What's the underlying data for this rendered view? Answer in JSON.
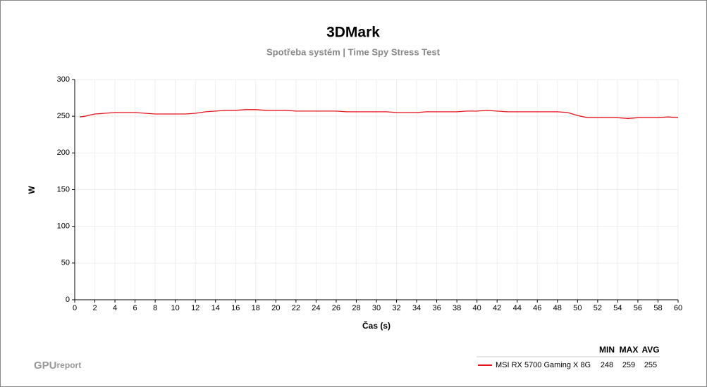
{
  "chart_data": {
    "type": "line",
    "title": "3DMark",
    "subtitle": "Spotřeba systém | Time Spy Stress Test",
    "x_label": "Čas (s)",
    "y_label": "W",
    "x": [
      0.5,
      1,
      2,
      3,
      4,
      5,
      6,
      7,
      8,
      9,
      10,
      11,
      12,
      13,
      14,
      15,
      16,
      17,
      18,
      19,
      20,
      21,
      22,
      23,
      24,
      25,
      26,
      27,
      28,
      29,
      30,
      31,
      32,
      33,
      34,
      35,
      36,
      37,
      38,
      39,
      40,
      41,
      42,
      43,
      44,
      45,
      46,
      47,
      48,
      49,
      50,
      51,
      52,
      53,
      54,
      55,
      56,
      57,
      58,
      59,
      60
    ],
    "series": [
      {
        "name": "MSI RX 5700 Gaming X 8G",
        "color": "#e8101a",
        "values": [
          249,
          250,
          253,
          254,
          255,
          255,
          255,
          254,
          253,
          253,
          253,
          253,
          254,
          256,
          257,
          258,
          258,
          259,
          259,
          258,
          258,
          258,
          257,
          257,
          257,
          257,
          257,
          256,
          256,
          256,
          256,
          256,
          255,
          255,
          255,
          256,
          256,
          256,
          256,
          257,
          257,
          258,
          257,
          256,
          256,
          256,
          256,
          256,
          256,
          255,
          251,
          248,
          248,
          248,
          248,
          247,
          248,
          248,
          248,
          249,
          248
        ]
      }
    ],
    "xlim": [
      0,
      60
    ],
    "xticks": [
      0,
      2,
      4,
      6,
      8,
      10,
      12,
      14,
      16,
      18,
      20,
      22,
      24,
      26,
      28,
      30,
      32,
      34,
      36,
      38,
      40,
      42,
      44,
      46,
      48,
      50,
      52,
      54,
      56,
      58,
      60
    ],
    "ylim": [
      0,
      300
    ],
    "yticks": [
      0,
      50,
      100,
      150,
      200,
      250,
      300
    ],
    "grid": true,
    "stats": {
      "headers": [
        "MIN",
        "MAX",
        "AVG"
      ],
      "values": [
        248,
        259,
        255
      ]
    },
    "logo": [
      "GPU",
      "report"
    ]
  }
}
